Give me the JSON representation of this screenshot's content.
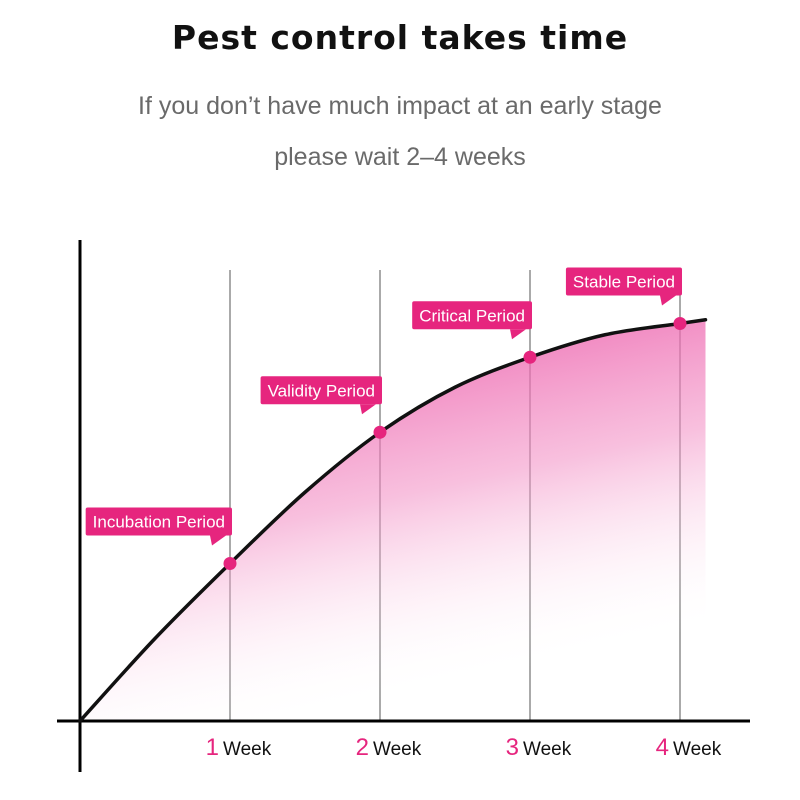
{
  "header": {
    "title": "Pest control takes time",
    "subtitle_line1": "If you don’t have much impact at an early stage",
    "subtitle_line2": "please wait 2–4 weeks"
  },
  "chart_data": {
    "type": "area",
    "title": "Pest control takes time",
    "x_ticks": [
      {
        "value": 1,
        "number": "1",
        "unit": "Week"
      },
      {
        "value": 2,
        "number": "2",
        "unit": "Week"
      },
      {
        "value": 3,
        "number": "3",
        "unit": "Week"
      },
      {
        "value": 4,
        "number": "4",
        "unit": "Week"
      }
    ],
    "xlim": [
      0,
      4.17
    ],
    "ylim": [
      0,
      1
    ],
    "curve": [
      {
        "x": 0,
        "y": 0
      },
      {
        "x": 0.5,
        "y": 0.22
      },
      {
        "x": 1,
        "y": 0.42
      },
      {
        "x": 1.5,
        "y": 0.61
      },
      {
        "x": 2,
        "y": 0.77
      },
      {
        "x": 2.5,
        "y": 0.89
      },
      {
        "x": 3,
        "y": 0.97
      },
      {
        "x": 3.5,
        "y": 1.03
      },
      {
        "x": 4,
        "y": 1.06
      },
      {
        "x": 4.17,
        "y": 1.07
      }
    ],
    "milestones": [
      {
        "x": 1,
        "label": "Incubation Period"
      },
      {
        "x": 2,
        "label": "Validity Period"
      },
      {
        "x": 3,
        "label": "Critical Period"
      },
      {
        "x": 4,
        "label": "Stable Period"
      }
    ],
    "grid": "vertical",
    "colors": {
      "accent": "#e6257e",
      "label_bg": "#e6257e",
      "fill_top": "#e8409b",
      "axis": "#000000",
      "tick_number": "#e6257e"
    }
  }
}
